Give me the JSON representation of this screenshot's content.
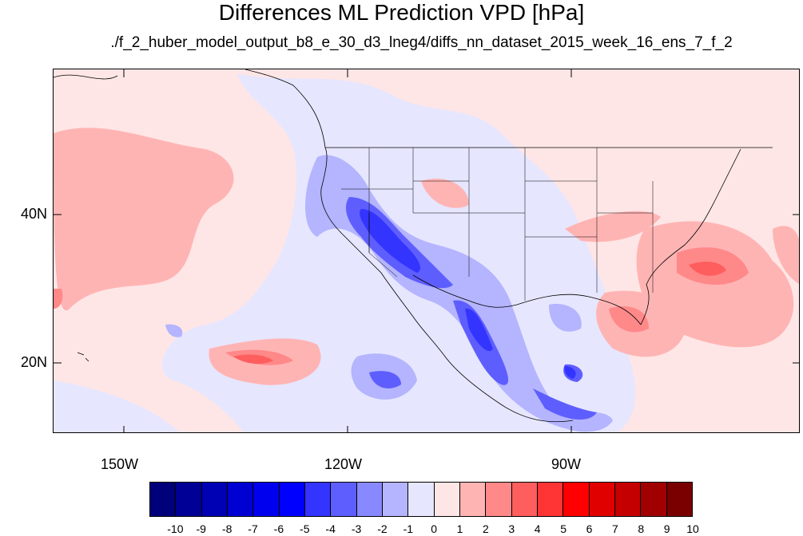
{
  "title": "Differences ML Prediction VPD [hPa]",
  "subtitle": "./f_2_huber_model_output_b8_e_30_d3_lneg4/diffs_nn_dataset_2015_week_16_ens_7_f_2",
  "map": {
    "lon_labels": [
      "150W",
      "120W",
      "90W"
    ],
    "lat_labels": [
      "40N",
      "20N"
    ],
    "background_color": "#ffe6e6"
  },
  "colorbar": {
    "labels": [
      "-10",
      "-9",
      "-8",
      "-7",
      "-6",
      "-5",
      "-4",
      "-3",
      "-2",
      "-1",
      "0",
      "1",
      "2",
      "3",
      "4",
      "5",
      "6",
      "7",
      "8",
      "9",
      "10"
    ],
    "colors": [
      "#00007a",
      "#000096",
      "#0000b4",
      "#0000d2",
      "#0000ee",
      "#0000ff",
      "#3434ff",
      "#5e5eff",
      "#8888ff",
      "#b4b4ff",
      "#e6e6ff",
      "#ffe6e6",
      "#ffb4b4",
      "#ff8888",
      "#ff5e5e",
      "#ff3434",
      "#ff0000",
      "#e00000",
      "#c40000",
      "#a00000",
      "#7a0000"
    ]
  }
}
